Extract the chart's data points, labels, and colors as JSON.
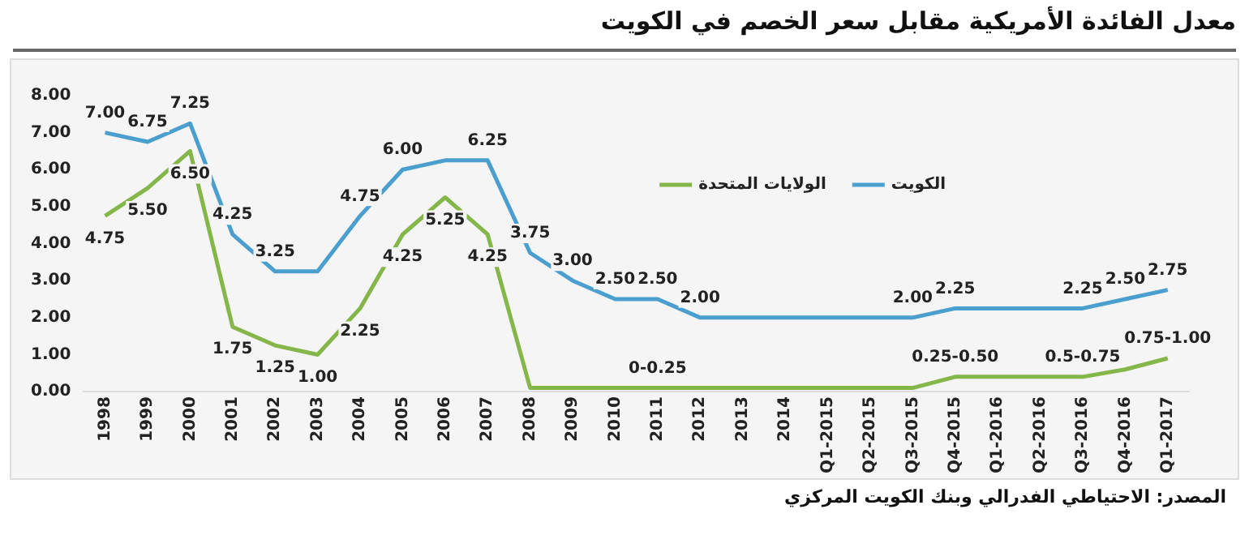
{
  "chart_data": {
    "type": "line",
    "title": "معدل الفائدة الأمريكية مقابل سعر الخصم في الكويت",
    "annotations": [
      "المصدر: الاحتياطي الفدرالي وبنك الكويت المركزي"
    ],
    "categories": [
      "1998",
      "1999",
      "2000",
      "2001",
      "2002",
      "2003",
      "2004",
      "2005",
      "2006",
      "2007",
      "2008",
      "2009",
      "2010",
      "2011",
      "2012",
      "2013",
      "2014",
      "Q1-2015",
      "Q2-2015",
      "Q3-2015",
      "Q4-2015",
      "Q1-2016",
      "Q2-2016",
      "Q3-2016",
      "Q4-2016",
      "Q1-2017"
    ],
    "series": [
      {
        "name": "الكويت",
        "color": "#4a9fcf",
        "values": [
          7.0,
          6.75,
          7.25,
          4.25,
          3.25,
          3.25,
          4.75,
          6.0,
          6.25,
          6.25,
          3.75,
          3.0,
          2.5,
          2.5,
          2.0,
          2.0,
          2.0,
          2.0,
          2.0,
          2.0,
          2.25,
          2.25,
          2.25,
          2.25,
          2.5,
          2.75
        ],
        "value_labels": [
          "7.00",
          "6.75",
          "7.25",
          "4.25",
          "3.25",
          null,
          "4.75",
          "6.00",
          null,
          "6.25",
          "3.75",
          "3.00",
          "2.50",
          "2.50",
          "2.00",
          null,
          null,
          null,
          null,
          "2.00",
          "2.25",
          null,
          null,
          "2.25",
          "2.50",
          "2.75"
        ]
      },
      {
        "name": "الولايات المتحدة",
        "color": "#84b64a",
        "values": [
          4.75,
          5.5,
          6.5,
          1.75,
          1.25,
          1.0,
          2.25,
          4.25,
          5.25,
          4.25,
          0.1,
          0.1,
          0.1,
          0.1,
          0.1,
          0.1,
          0.1,
          0.1,
          0.1,
          0.1,
          0.4,
          0.4,
          0.4,
          0.4,
          0.6,
          0.9
        ],
        "value_labels": [
          "4.75",
          "5.50",
          "6.50",
          "1.75",
          "1.25",
          "1.00",
          "2.25",
          "4.25",
          "5.25",
          "4.25",
          null,
          null,
          null,
          "0-0.25",
          null,
          null,
          null,
          null,
          null,
          null,
          "0.25-0.50",
          null,
          null,
          "0.5-0.75",
          null,
          "0.75-1.00"
        ]
      }
    ],
    "ylim": [
      0,
      8
    ],
    "yticks": [
      {
        "value": 0,
        "label": "0.00"
      },
      {
        "value": 1,
        "label": "1.00"
      },
      {
        "value": 2,
        "label": "2.00"
      },
      {
        "value": 3,
        "label": "3.00"
      },
      {
        "value": 4,
        "label": "4.00"
      },
      {
        "value": 5,
        "label": "5.00"
      },
      {
        "value": 6,
        "label": "6.00"
      },
      {
        "value": 7,
        "label": "7.00"
      },
      {
        "value": 8,
        "label": "8.00"
      }
    ],
    "grid": false,
    "legend": "top right",
    "marker": "none",
    "line_style": "solid"
  }
}
